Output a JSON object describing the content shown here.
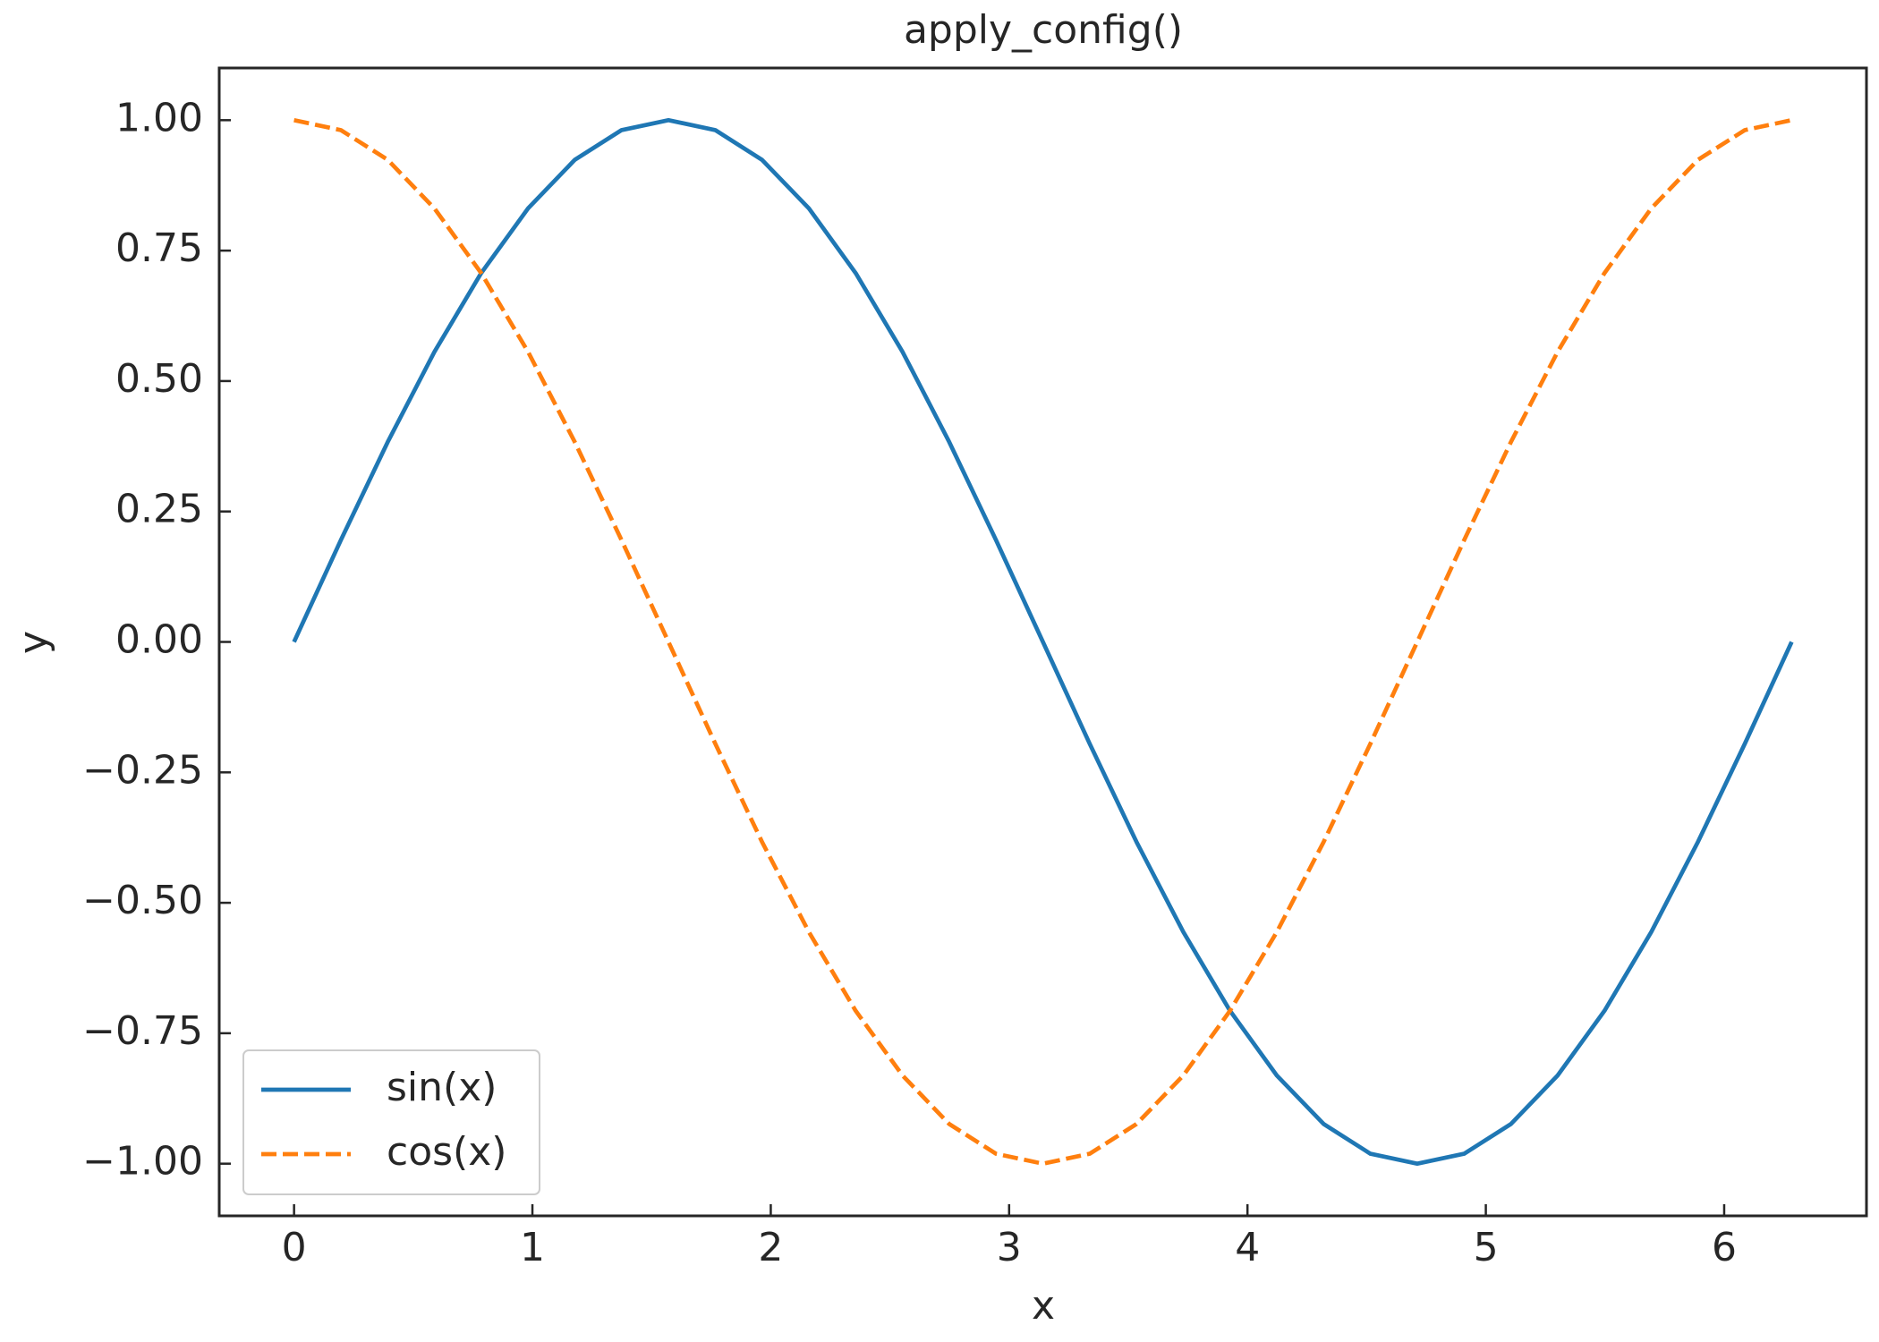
{
  "chart_data": {
    "type": "line",
    "title": "apply_config()",
    "x_label": "x",
    "y_label": "y",
    "x": [
      0,
      0.196,
      0.393,
      0.589,
      0.785,
      0.982,
      1.178,
      1.374,
      1.571,
      1.767,
      1.963,
      2.16,
      2.356,
      2.553,
      2.749,
      2.945,
      3.142,
      3.338,
      3.534,
      3.731,
      3.927,
      4.123,
      4.32,
      4.516,
      4.712,
      4.909,
      5.105,
      5.301,
      5.498,
      5.694,
      5.89,
      6.087,
      6.283
    ],
    "series": [
      {
        "name": "sin(x)",
        "color": "#1f77b4",
        "linestyle": "solid",
        "values": [
          0,
          0.195,
          0.383,
          0.556,
          0.707,
          0.831,
          0.924,
          0.981,
          1,
          0.981,
          0.924,
          0.831,
          0.707,
          0.556,
          0.383,
          0.195,
          0,
          -0.195,
          -0.383,
          -0.556,
          -0.707,
          -0.831,
          -0.924,
          -0.981,
          -1,
          -0.981,
          -0.924,
          -0.831,
          -0.707,
          -0.556,
          -0.383,
          -0.195,
          0
        ]
      },
      {
        "name": "cos(x)",
        "color": "#ff7f0e",
        "linestyle": "dashed",
        "values": [
          1,
          0.981,
          0.924,
          0.831,
          0.707,
          0.556,
          0.383,
          0.195,
          0,
          -0.195,
          -0.383,
          -0.556,
          -0.707,
          -0.831,
          -0.924,
          -0.981,
          -1,
          -0.981,
          -0.924,
          -0.831,
          -0.707,
          -0.556,
          -0.383,
          -0.195,
          0,
          0.195,
          0.383,
          0.556,
          0.707,
          0.831,
          0.924,
          0.981,
          1
        ]
      }
    ],
    "xlim": [
      -0.314,
      6.597
    ],
    "ylim": [
      -1.1,
      1.1
    ],
    "xticks": [
      0,
      1,
      2,
      3,
      4,
      5,
      6
    ],
    "yticks": [
      {
        "value": -1,
        "label": "−1.00"
      },
      {
        "value": -0.75,
        "label": "−0.75"
      },
      {
        "value": -0.5,
        "label": "−0.50"
      },
      {
        "value": -0.25,
        "label": "−0.25"
      },
      {
        "value": 0,
        "label": "0.00"
      },
      {
        "value": 0.25,
        "label": "0.25"
      },
      {
        "value": 0.5,
        "label": "0.50"
      },
      {
        "value": 0.75,
        "label": "0.75"
      },
      {
        "value": 1,
        "label": "1.00"
      }
    ],
    "legend": "lower left",
    "grid": false
  }
}
